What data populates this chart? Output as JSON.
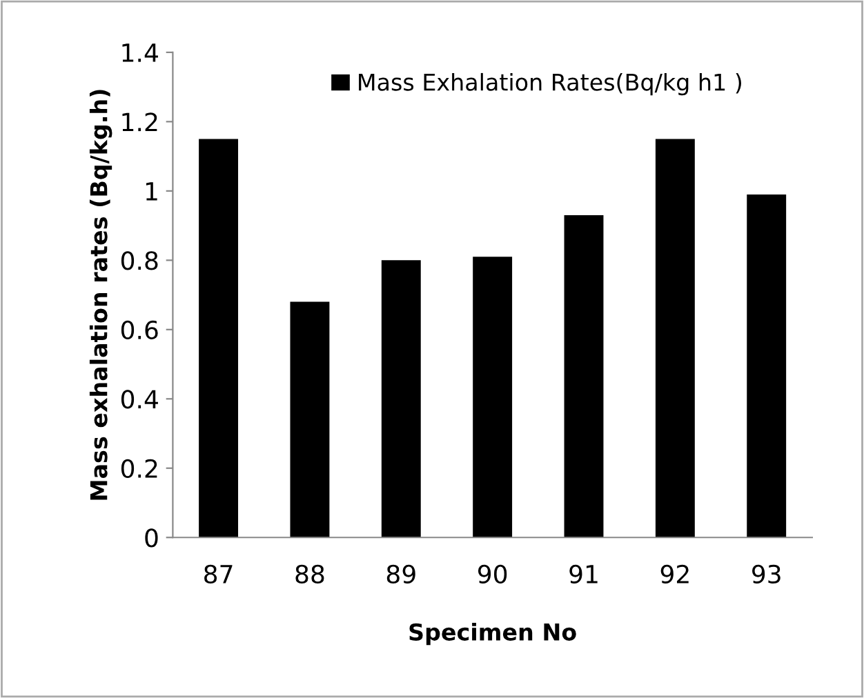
{
  "chart_data": {
    "type": "bar",
    "xlabel": "Specimen No",
    "ylabel": "Mass exhalation rates (Bq/kg.h)",
    "categories": [
      "87",
      "88",
      "89",
      "90",
      "91",
      "92",
      "93"
    ],
    "series": [
      {
        "name": "Mass Exhalation Rates(Bq/kg h1 )",
        "color": "#000000",
        "values": [
          1.15,
          0.68,
          0.8,
          0.81,
          0.93,
          1.15,
          0.99
        ]
      }
    ],
    "ylim": [
      0,
      1.4
    ],
    "yticks": [
      0,
      0.2,
      0.4,
      0.6,
      0.8,
      1,
      1.2,
      1.4
    ],
    "grid": false,
    "legend": "top"
  }
}
